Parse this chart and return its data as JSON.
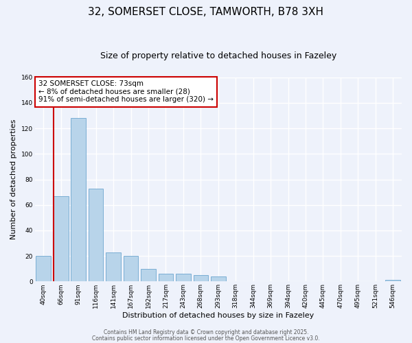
{
  "title": "32, SOMERSET CLOSE, TAMWORTH, B78 3XH",
  "subtitle": "Size of property relative to detached houses in Fazeley",
  "xlabel": "Distribution of detached houses by size in Fazeley",
  "ylabel": "Number of detached properties",
  "bar_labels": [
    "40sqm",
    "66sqm",
    "91sqm",
    "116sqm",
    "141sqm",
    "167sqm",
    "192sqm",
    "217sqm",
    "243sqm",
    "268sqm",
    "293sqm",
    "318sqm",
    "344sqm",
    "369sqm",
    "394sqm",
    "420sqm",
    "445sqm",
    "470sqm",
    "495sqm",
    "521sqm",
    "546sqm"
  ],
  "bar_heights": [
    20,
    67,
    128,
    73,
    23,
    20,
    10,
    6,
    6,
    5,
    4,
    0,
    0,
    0,
    0,
    0,
    0,
    0,
    0,
    0,
    1
  ],
  "bar_color": "#b8d4ea",
  "bar_edge_color": "#7aaed4",
  "vline_color": "#cc0000",
  "vline_pos": 1.5,
  "ylim": [
    0,
    160
  ],
  "yticks": [
    0,
    20,
    40,
    60,
    80,
    100,
    120,
    140,
    160
  ],
  "annotation_text": "32 SOMERSET CLOSE: 73sqm\n← 8% of detached houses are smaller (28)\n91% of semi-detached houses are larger (320) →",
  "annotation_box_color": "#ffffff",
  "annotation_box_edge": "#cc0000",
  "footer_line1": "Contains HM Land Registry data © Crown copyright and database right 2025.",
  "footer_line2": "Contains public sector information licensed under the Open Government Licence v3.0.",
  "background_color": "#eef2fb",
  "grid_color": "#ffffff",
  "title_fontsize": 11,
  "subtitle_fontsize": 9,
  "tick_fontsize": 6.5,
  "ylabel_fontsize": 8,
  "xlabel_fontsize": 8,
  "annotation_fontsize": 7.5,
  "footer_fontsize": 5.5
}
